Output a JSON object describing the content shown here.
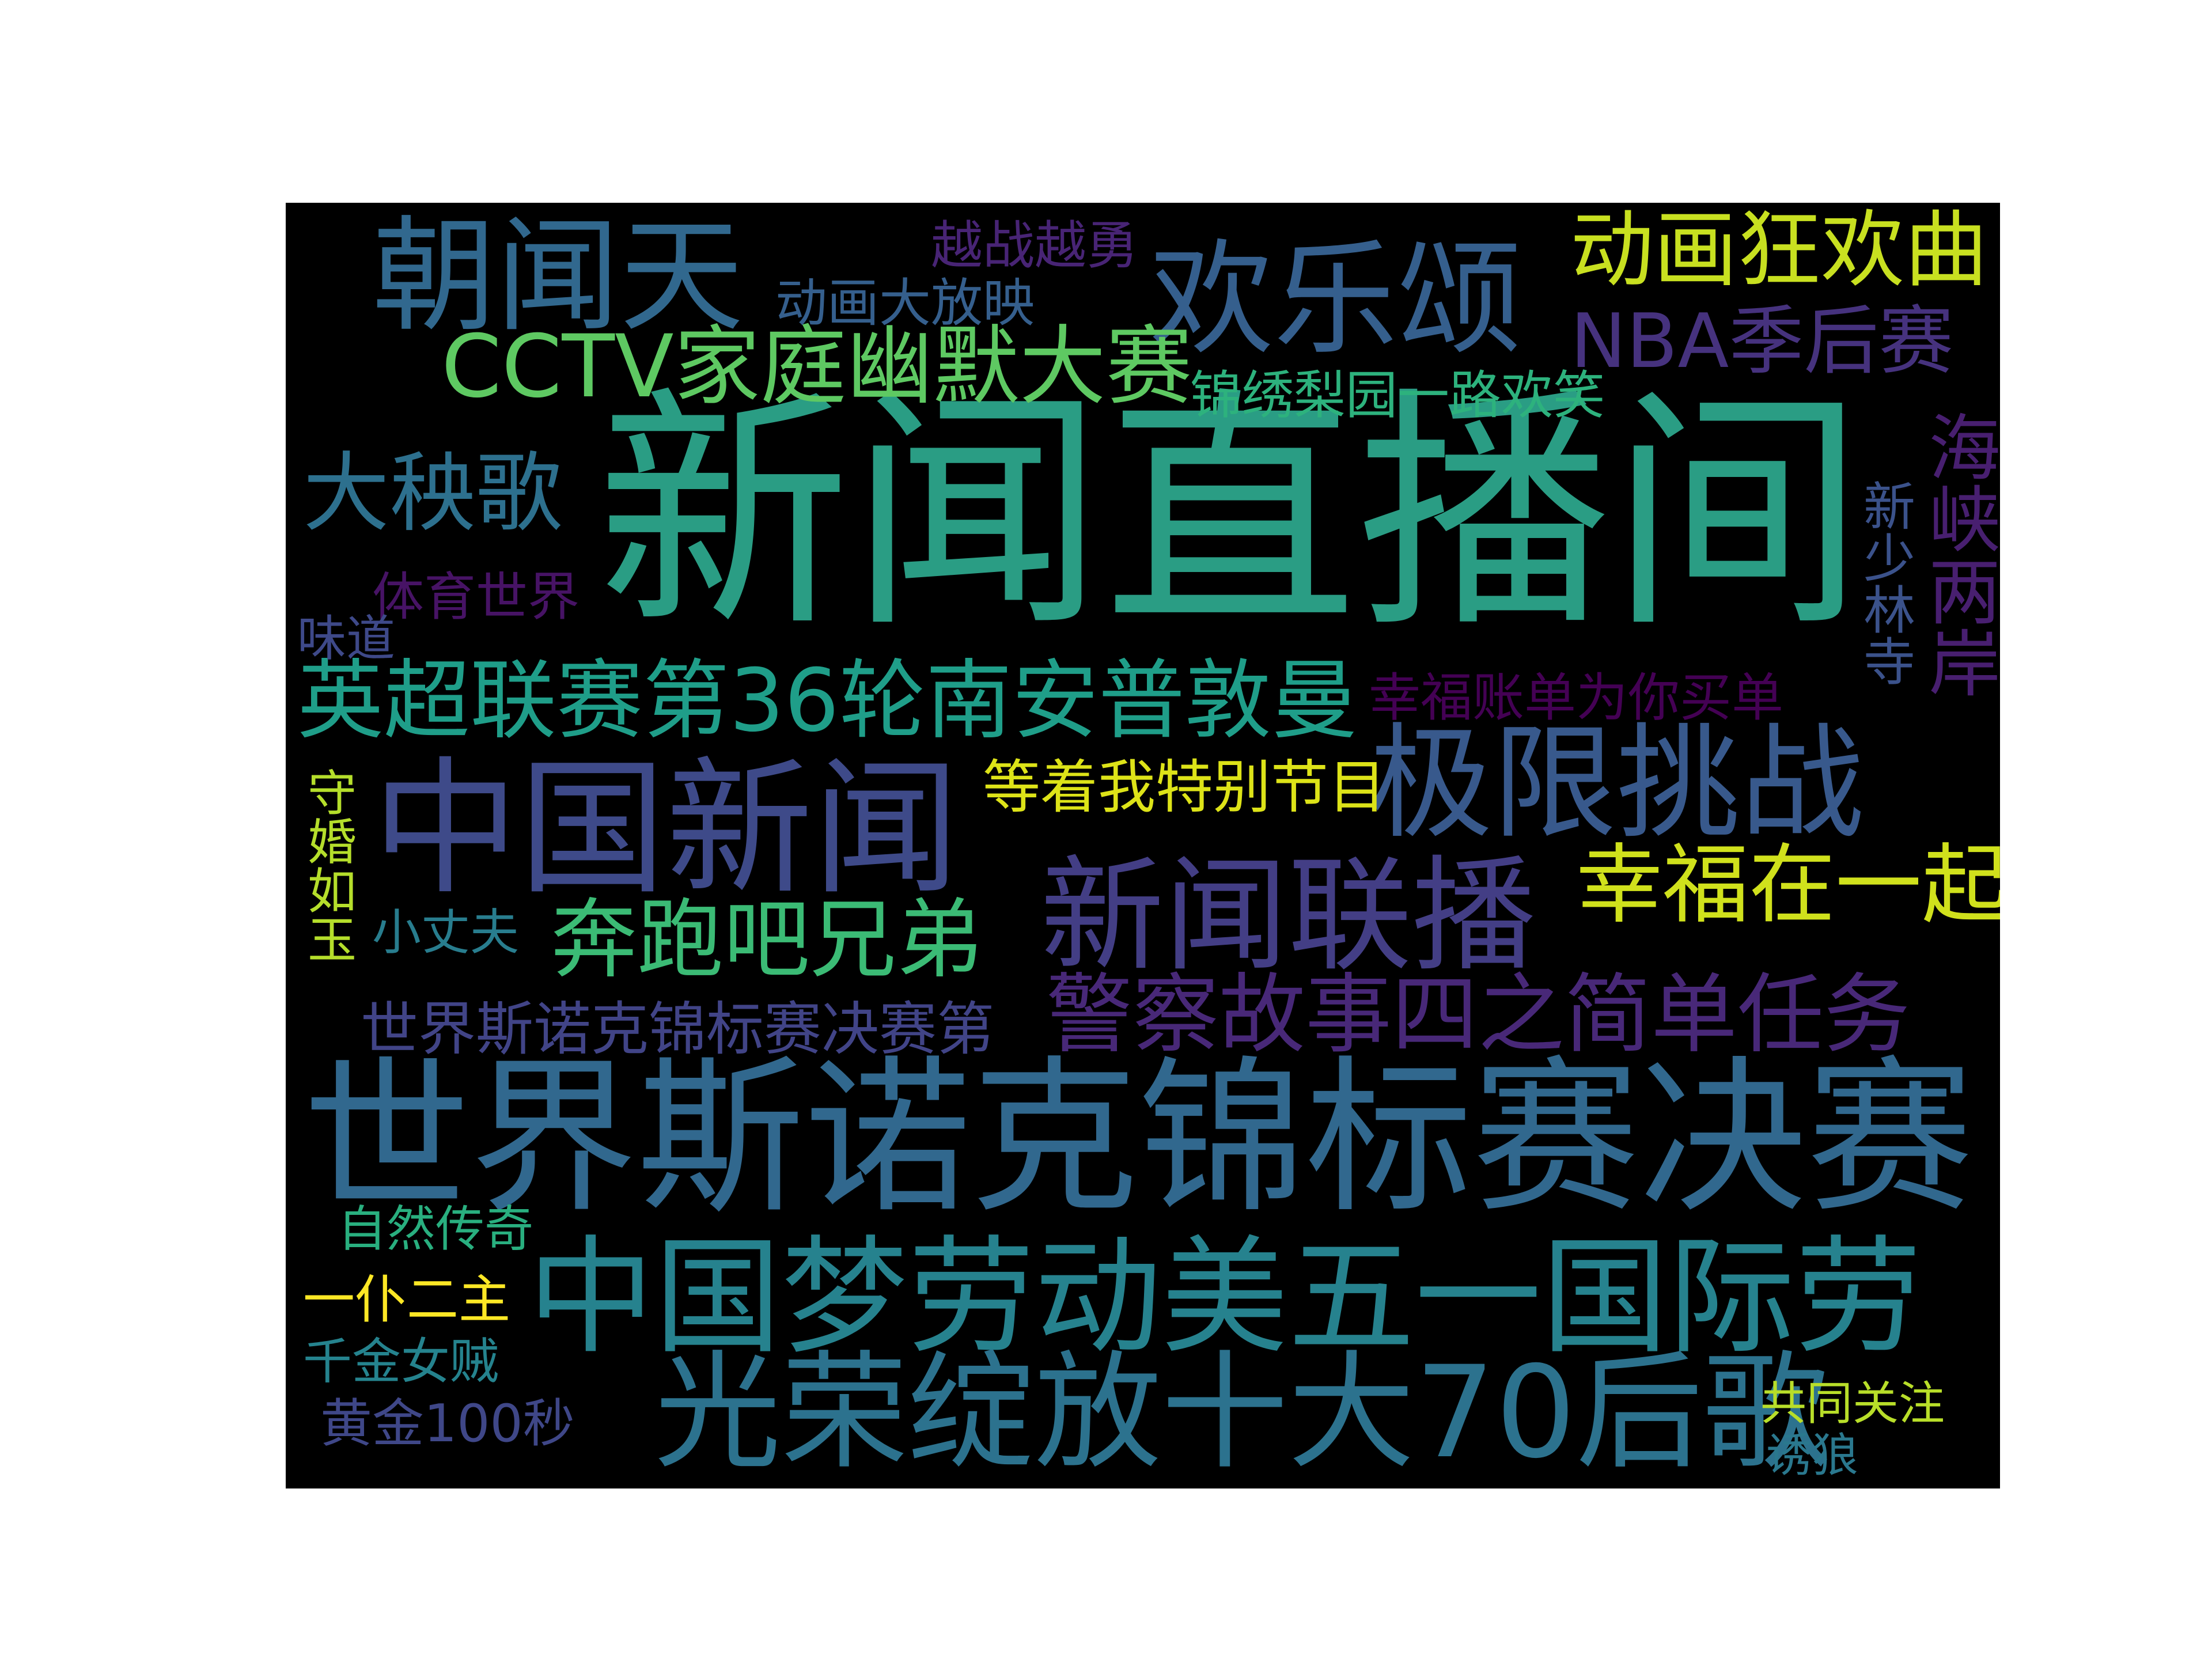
{
  "colors": {
    "background": "#000000",
    "page": "#ffffff"
  },
  "words": [
    {
      "id": "xinwen-zhibojian",
      "text": "新闻直播间",
      "color": "#2a9d84"
    },
    {
      "id": "shijie-snooker-juesai",
      "text": "世界斯诺克锦标赛决赛",
      "color": "#31688e"
    },
    {
      "id": "zhongguo-xinwen",
      "text": "中国新闻",
      "color": "#3e4a89"
    },
    {
      "id": "zhongguomeng",
      "text": "中国梦劳动美五一国际劳",
      "color": "#26828e"
    },
    {
      "id": "guangrong",
      "text": "光荣绽放十大70后歌",
      "color": "#2c728e"
    },
    {
      "id": "jixian-tiaozhan",
      "text": "极限挑战",
      "color": "#38598c"
    },
    {
      "id": "xinwen-lianbo",
      "text": "新闻联播",
      "color": "#433e85"
    },
    {
      "id": "huanlesong",
      "text": "欢乐颂",
      "color": "#355f8d"
    },
    {
      "id": "zhaowentian",
      "text": "朝闻天",
      "color": "#31688e"
    },
    {
      "id": "yingchao",
      "text": "英超联赛第36轮南安普敦曼",
      "color": "#1f9e89"
    },
    {
      "id": "cctv-youmo",
      "text": "CCTV家庭幽默大赛",
      "color": "#5ec962"
    },
    {
      "id": "jingcha-gushi",
      "text": "警察故事四之简单任务",
      "color": "#482878"
    },
    {
      "id": "benpaoba",
      "text": "奔跑吧兄弟",
      "color": "#3bbb75"
    },
    {
      "id": "xingfu-zaiyiqi",
      "text": "幸福在一起",
      "color": "#d0e11c"
    },
    {
      "id": "donghua-kuanghuanqu",
      "text": "动画狂欢曲",
      "color": "#c8e020"
    },
    {
      "id": "nba",
      "text": "NBA季后赛",
      "color": "#46327e"
    },
    {
      "id": "dayangge",
      "text": "大秧歌",
      "color": "#2d708e"
    },
    {
      "id": "haixia-liangan",
      "text": "海峡两岸",
      "color": "#481f70"
    },
    {
      "id": "shijie-snooker-small",
      "text": "世界斯诺克锦标赛决赛第",
      "color": "#414487"
    },
    {
      "id": "dengzhewo",
      "text": "等着我特别节目",
      "color": "#dde318"
    },
    {
      "id": "xingfu-zhangdan",
      "text": "幸福账单为你买单",
      "color": "#440154"
    },
    {
      "id": "jinxiu-liyuan",
      "text": "锦绣梨园一路欢笑",
      "color": "#2db27d"
    },
    {
      "id": "xin-shaolinsi",
      "text": "新少林寺",
      "color": "#3b528b"
    },
    {
      "id": "tiyu-shijie",
      "text": "体育世界",
      "color": "#471365"
    },
    {
      "id": "donghua-dafangying",
      "text": "动画大放映",
      "color": "#355f8d"
    },
    {
      "id": "yuezhan-yueyong",
      "text": "越战越勇",
      "color": "#482475"
    },
    {
      "id": "weidao",
      "text": "味道",
      "color": "#3e4989"
    },
    {
      "id": "shouhun-ruyu",
      "text": "守婚如玉",
      "color": "#b5de2b"
    },
    {
      "id": "xiao-zhangfu",
      "text": "小丈夫",
      "color": "#287d8e"
    },
    {
      "id": "ziran-chuanqi",
      "text": "自然传奇",
      "color": "#29af7f"
    },
    {
      "id": "yipu-erzhu",
      "text": "一仆二主",
      "color": "#fde725"
    },
    {
      "id": "qianjin-nvzei",
      "text": "千金女贼",
      "color": "#25838e"
    },
    {
      "id": "huangjin-100miao",
      "text": "黄金100秒",
      "color": "#3f4788"
    },
    {
      "id": "gongtong-guanzhu",
      "text": "共同关注",
      "color": "#b8de29"
    },
    {
      "id": "youlang",
      "text": "诱狼",
      "color": "#2a788e"
    }
  ]
}
